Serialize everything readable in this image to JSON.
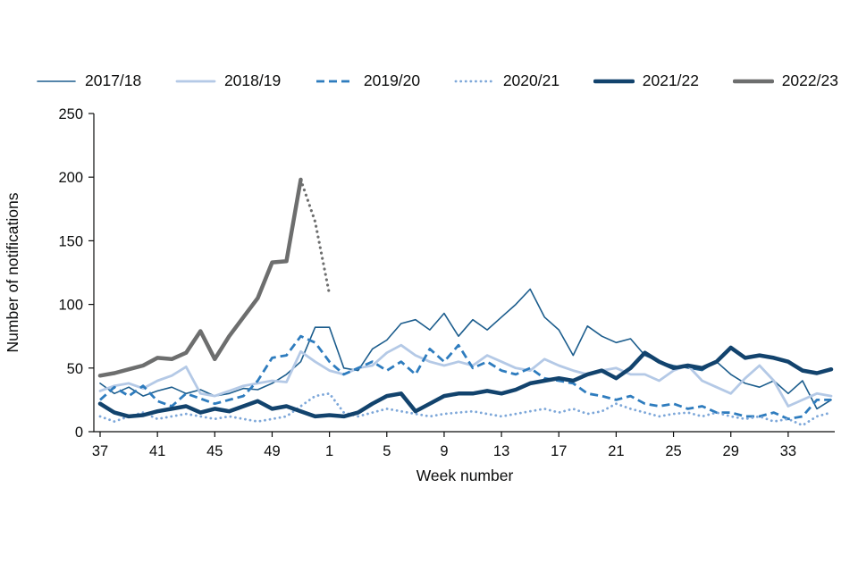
{
  "page": {
    "background": "#ffffff"
  },
  "chart_data": {
    "type": "line",
    "title": "",
    "xlabel": "Week number",
    "ylabel": "Number of notifications",
    "ylim": [
      0,
      250
    ],
    "y_ticks": [
      0,
      50,
      100,
      150,
      200,
      250
    ],
    "grid": false,
    "legend_position": "top",
    "x_labels": [
      "37",
      "38",
      "39",
      "40",
      "41",
      "42",
      "43",
      "44",
      "45",
      "46",
      "47",
      "48",
      "49",
      "50",
      "51",
      "52",
      "1",
      "2",
      "3",
      "4",
      "5",
      "6",
      "7",
      "8",
      "9",
      "10",
      "11",
      "12",
      "13",
      "14",
      "15",
      "16",
      "17",
      "18",
      "19",
      "20",
      "21",
      "22",
      "23",
      "24",
      "25",
      "26",
      "27",
      "28",
      "29",
      "30",
      "31",
      "32",
      "33",
      "34",
      "35",
      "36"
    ],
    "x_tick_labels": [
      "37",
      "41",
      "45",
      "49",
      "1",
      "5",
      "9",
      "13",
      "17",
      "21",
      "25",
      "29",
      "33"
    ],
    "x_tick_indices": [
      0,
      4,
      8,
      12,
      16,
      20,
      24,
      28,
      32,
      36,
      40,
      44,
      48
    ],
    "series": [
      {
        "name": "2017/18",
        "color": "#1c5d8d",
        "width": 1.6,
        "dash": "",
        "cap": "round",
        "values": [
          38,
          30,
          35,
          28,
          32,
          35,
          30,
          33,
          28,
          30,
          34,
          33,
          38,
          45,
          55,
          82,
          82,
          50,
          48,
          65,
          72,
          85,
          88,
          80,
          93,
          75,
          88,
          80,
          90,
          100,
          112,
          90,
          80,
          60,
          83,
          75,
          70,
          73,
          60,
          55,
          52,
          50,
          48,
          55,
          45,
          38,
          35,
          40,
          30,
          40,
          18,
          25
        ]
      },
      {
        "name": "2018/19",
        "color": "#b4c9e6",
        "width": 2.8,
        "dash": "",
        "cap": "round",
        "values": [
          32,
          36,
          38,
          34,
          40,
          44,
          51,
          30,
          28,
          32,
          36,
          38,
          40,
          39,
          63,
          55,
          48,
          45,
          50,
          52,
          62,
          68,
          60,
          55,
          52,
          55,
          52,
          60,
          55,
          50,
          48,
          57,
          52,
          48,
          45,
          48,
          50,
          45,
          45,
          40,
          48,
          52,
          40,
          35,
          30,
          42,
          52,
          40,
          20,
          25,
          30,
          28
        ]
      },
      {
        "name": "2019/20",
        "color": "#2e7cbe",
        "width": 2.8,
        "dash": "9 5",
        "cap": "butt",
        "values": [
          25,
          35,
          28,
          36,
          24,
          20,
          30,
          26,
          22,
          25,
          28,
          40,
          58,
          60,
          75,
          70,
          55,
          45,
          50,
          55,
          48,
          55,
          45,
          65,
          55,
          68,
          50,
          55,
          48,
          45,
          50,
          42,
          40,
          38,
          30,
          28,
          25,
          28,
          22,
          20,
          22,
          18,
          20,
          15,
          15,
          12,
          12,
          15,
          10,
          12,
          25,
          25
        ]
      },
      {
        "name": "2020/21",
        "color": "#7da7d9",
        "width": 2.8,
        "dash": "0.1 5.5",
        "cap": "round",
        "values": [
          12,
          8,
          12,
          15,
          10,
          12,
          14,
          12,
          10,
          12,
          10,
          8,
          10,
          12,
          20,
          28,
          30,
          15,
          12,
          15,
          18,
          16,
          14,
          12,
          14,
          15,
          16,
          14,
          12,
          14,
          16,
          18,
          15,
          18,
          14,
          16,
          22,
          18,
          15,
          12,
          14,
          15,
          12,
          15,
          12,
          10,
          12,
          8,
          10,
          5,
          12,
          15
        ]
      },
      {
        "name": "2021/22",
        "color": "#12436d",
        "width": 4.5,
        "dash": "",
        "cap": "round",
        "values": [
          22,
          15,
          12,
          13,
          16,
          18,
          20,
          15,
          18,
          16,
          20,
          24,
          18,
          20,
          16,
          12,
          13,
          12,
          15,
          22,
          28,
          30,
          16,
          22,
          28,
          30,
          30,
          32,
          30,
          33,
          38,
          40,
          42,
          40,
          45,
          48,
          42,
          50,
          62,
          55,
          50,
          52,
          50,
          55,
          66,
          58,
          60,
          58,
          55,
          48,
          46,
          49
        ]
      },
      {
        "name": "2022/23",
        "color": "#6d6e6e",
        "width": 4.5,
        "dash": "",
        "cap": "round",
        "values": [
          44,
          46,
          49,
          52,
          58,
          57,
          62,
          79,
          57,
          75,
          90,
          105,
          133,
          134,
          198
        ]
      },
      {
        "name": "2022/23 provisional",
        "color": "#6d6e6e",
        "width": 3.2,
        "dash": "0.1 6",
        "cap": "round",
        "in_legend": false,
        "start": 14,
        "values": [
          198,
          165,
          108
        ]
      }
    ]
  }
}
